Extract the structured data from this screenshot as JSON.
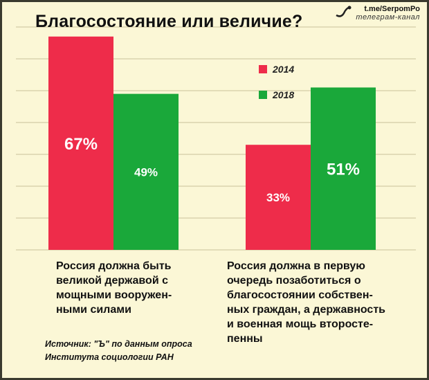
{
  "header": {
    "title": "Благосостояние или величие?",
    "brand_url": "t.me/SerpomPo",
    "brand_sub": "телеграм-канал"
  },
  "source": {
    "line1": "Источник: \"Ъ\" по данным опроса",
    "line2": "Института социологии РАН"
  },
  "colors": {
    "bg": "#fbf7d6",
    "series_2014": "#ee2c4a",
    "series_2018": "#1aa83a"
  },
  "chart_data": {
    "type": "bar",
    "title": "Благосостояние или величие?",
    "categories": [
      "Россия должна быть великой державой с мощными вооружен-ными силами",
      "Россия должна в первую очередь позаботиться о благосостоянии собствен-ных граждан, а державность и военная мощь второсте-пенны"
    ],
    "category_lines": [
      [
        "Россия должна быть",
        "великой державой с",
        "мощными вооружен-",
        "ными силами"
      ],
      [
        "Россия должна в первую",
        "очередь позаботиться о",
        "благосостоянии собствен-",
        "ных граждан, а державность",
        "и военная мощь второсте-",
        "пенны"
      ]
    ],
    "series": [
      {
        "name": "2014",
        "values": [
          67,
          33
        ],
        "labels": [
          "67%",
          "33%"
        ],
        "color": "#ee2c4a"
      },
      {
        "name": "2018",
        "values": [
          49,
          51
        ],
        "labels": [
          "49%",
          "51%"
        ],
        "color": "#1aa83a"
      }
    ],
    "ylim": [
      0,
      70
    ],
    "grid": true,
    "legend": "top-right",
    "xlabel": "",
    "ylabel": ""
  }
}
